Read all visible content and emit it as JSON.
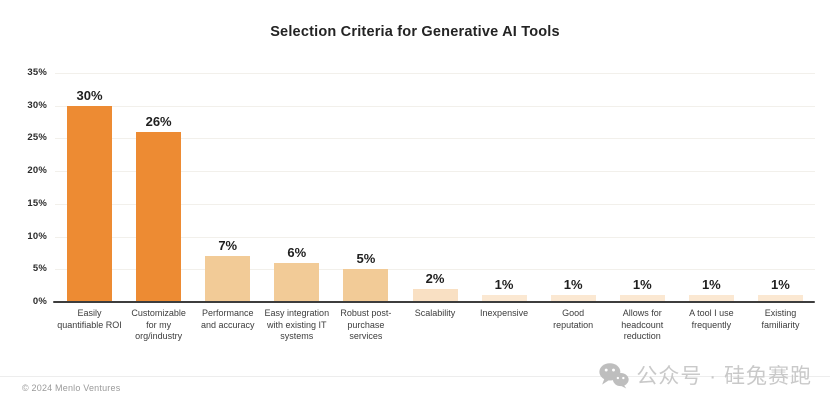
{
  "chart_data": {
    "type": "bar",
    "title": "Selection Criteria for Generative AI Tools",
    "categories": [
      "Easily\nquantifiable ROI",
      "Customizable\nfor my\norg/industry",
      "Performance\nand accuracy",
      "Easy integration\nwith existing IT\nsystems",
      "Robust post-\npurchase\nservices",
      "Scalability",
      "Inexpensive",
      "Good\nreputation",
      "Allows for\nheadcount\nreduction",
      "A tool I use\nfrequently",
      "Existing\nfamiliarity"
    ],
    "values": [
      30,
      26,
      7,
      6,
      5,
      2,
      1,
      1,
      1,
      1,
      1
    ],
    "value_labels": [
      "30%",
      "26%",
      "7%",
      "6%",
      "5%",
      "2%",
      "1%",
      "1%",
      "1%",
      "1%",
      "1%"
    ],
    "bar_colors": [
      "#ED8B33",
      "#ED8B33",
      "#F2CB97",
      "#F2CB97",
      "#F2CB97",
      "#F9E0C3",
      "#FBE8D2",
      "#FBE8D2",
      "#FBE8D2",
      "#FBE8D2",
      "#FBE8D2"
    ],
    "xlabel": "",
    "ylabel": "",
    "ylim": [
      0,
      35
    ],
    "yticks": [
      0,
      5,
      10,
      15,
      20,
      25,
      30,
      35
    ],
    "ytick_suffix": "%",
    "grid": "horizontal",
    "legend": "none"
  },
  "footer": {
    "copyright": "© 2024 Menlo Ventures",
    "watermark": "公众号 · 硅兔赛跑",
    "watermark_icon": "wechat-icon"
  },
  "colors": {
    "background": "#ffffff",
    "title": "#232323",
    "tick_label": "#2b2b2b",
    "value_label": "#1f1f1f",
    "category_label": "#3c3c3c",
    "grid": "#f2f0eb",
    "axis": "#3d3d3d",
    "footer_text": "#9a9a9a",
    "watermark": "#c9c9c9",
    "watermark_icon": "#bebebe",
    "bar_dark": "#ED8B33",
    "bar_medium": "#F2CB97",
    "bar_light": "#FBE8D2"
  }
}
